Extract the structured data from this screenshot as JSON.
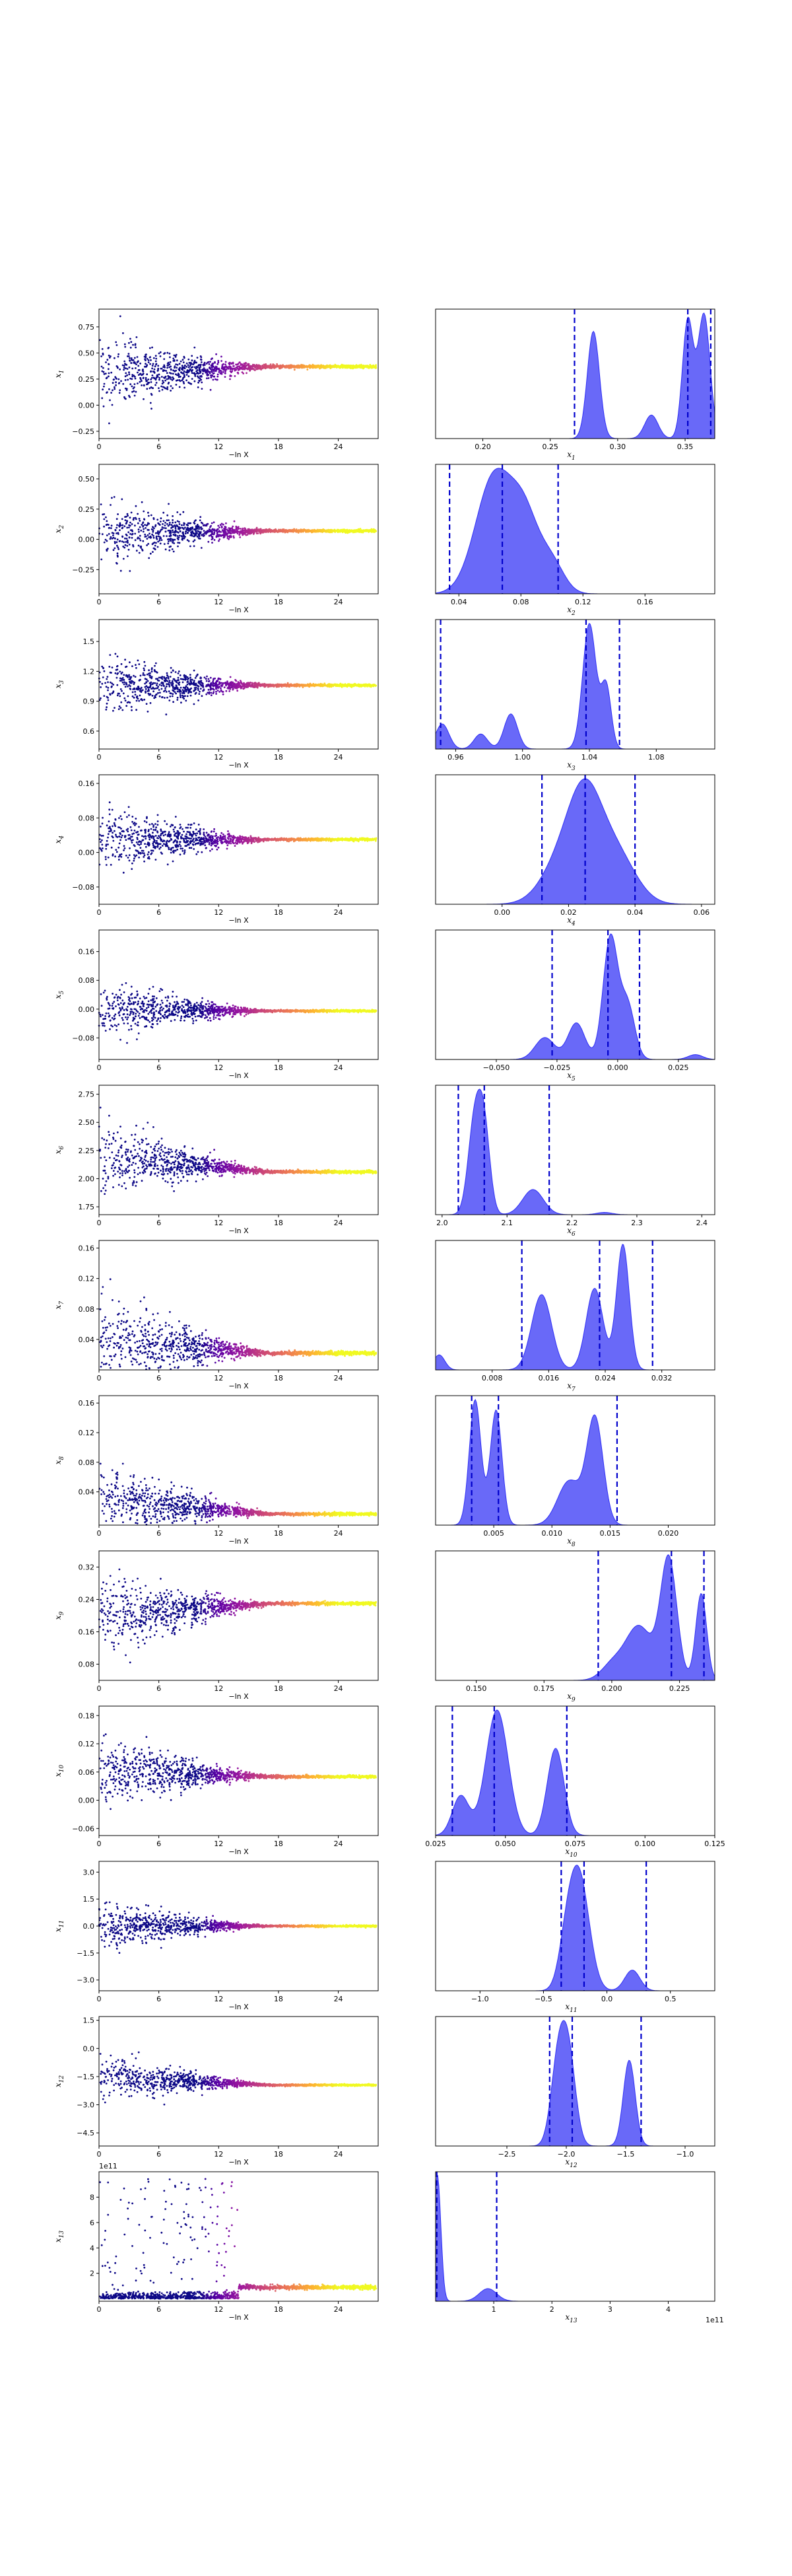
{
  "chart_data": {
    "type": "scatter",
    "description": "Nested-sampling run plot: left column = samples of each parameter vs -ln X (colored by likelihood), right column = marginal posterior density with quantile lines",
    "colormap": [
      "#0d0887",
      "#5b01a5",
      "#9c179e",
      "#cc4778",
      "#ed7953",
      "#fdb42f",
      "#f0f921"
    ],
    "density_color": "#2f2ff5",
    "quantile_line_color": "#0000cc",
    "left_x_label": "−ln X",
    "left_xticks": [
      "0",
      "6",
      "12",
      "18",
      "24"
    ],
    "left_xlim": [
      0,
      28
    ],
    "panels": [
      {
        "param": "x1",
        "ylabel_base": "x",
        "ylabel_sub": "1",
        "trace": {
          "yticks": [
            "−0.25",
            "0.00",
            "0.25",
            "0.50",
            "0.75"
          ],
          "ytick_vals": [
            -0.25,
            0,
            0.25,
            0.5,
            0.75
          ],
          "ylim": [
            -0.32,
            0.92
          ],
          "final": 0.37,
          "spread": 0.6,
          "center": 0.3,
          "offset": ""
        },
        "post": {
          "xlim": [
            0.165,
            0.372
          ],
          "xticks": [
            "0.20",
            "0.25",
            "0.30",
            "0.35"
          ],
          "xtick_vals": [
            0.2,
            0.25,
            0.3,
            0.35
          ],
          "peaks": [
            [
              0.282,
              0.0045,
              0.82
            ],
            [
              0.325,
              0.005,
              0.18
            ],
            [
              0.352,
              0.004,
              0.9
            ],
            [
              0.364,
              0.0045,
              0.95
            ]
          ],
          "quantiles": [
            0.268,
            0.352,
            0.369
          ],
          "offset": ""
        }
      },
      {
        "param": "x2",
        "ylabel_base": "x",
        "ylabel_sub": "2",
        "trace": {
          "yticks": [
            "−0.25",
            "0.00",
            "0.25",
            "0.50"
          ],
          "ytick_vals": [
            -0.25,
            0,
            0.25,
            0.5
          ],
          "ylim": [
            -0.45,
            0.62
          ],
          "final": 0.07,
          "spread": 0.45,
          "center": 0.05,
          "offset": ""
        },
        "post": {
          "xlim": [
            0.025,
            0.205
          ],
          "xticks": [
            "0.04",
            "0.08",
            "0.12",
            "0.16"
          ],
          "xtick_vals": [
            0.04,
            0.08,
            0.12,
            0.16
          ],
          "peaks": [
            [
              0.063,
              0.012,
              1.0
            ],
            [
              0.083,
              0.009,
              0.55
            ],
            [
              0.1,
              0.008,
              0.25
            ]
          ],
          "quantiles": [
            0.034,
            0.068,
            0.104
          ],
          "offset": ""
        }
      },
      {
        "param": "x3",
        "ylabel_base": "x",
        "ylabel_sub": "3",
        "trace": {
          "yticks": [
            "0.6",
            "0.9",
            "1.2",
            "1.5"
          ],
          "ytick_vals": [
            0.6,
            0.9,
            1.2,
            1.5
          ],
          "ylim": [
            0.42,
            1.72
          ],
          "final": 1.06,
          "spread": 0.5,
          "center": 1.05,
          "offset": ""
        },
        "post": {
          "xlim": [
            0.948,
            1.115
          ],
          "xticks": [
            "0.96",
            "1.00",
            "1.04",
            "1.08"
          ],
          "xtick_vals": [
            0.96,
            1.0,
            1.04,
            1.08
          ],
          "peaks": [
            [
              0.952,
              0.004,
              0.2
            ],
            [
              0.975,
              0.004,
              0.12
            ],
            [
              0.993,
              0.004,
              0.28
            ],
            [
              1.04,
              0.004,
              1.0
            ],
            [
              1.05,
              0.003,
              0.5
            ]
          ],
          "quantiles": [
            0.951,
            1.038,
            1.058
          ],
          "offset": ""
        }
      },
      {
        "param": "x4",
        "ylabel_base": "x",
        "ylabel_sub": "4",
        "trace": {
          "yticks": [
            "−0.08",
            "0.00",
            "0.08",
            "0.16"
          ],
          "ytick_vals": [
            -0.08,
            0,
            0.08,
            0.16
          ],
          "ylim": [
            -0.12,
            0.18
          ],
          "final": 0.03,
          "spread": 0.12,
          "center": 0.03,
          "offset": ""
        },
        "post": {
          "xlim": [
            -0.02,
            0.064
          ],
          "xticks": [
            "0.00",
            "0.02",
            "0.04",
            "0.06"
          ],
          "xtick_vals": [
            0.0,
            0.02,
            0.04,
            0.06
          ],
          "peaks": [
            [
              0.018,
              0.006,
              0.45
            ],
            [
              0.025,
              0.005,
              0.95
            ],
            [
              0.034,
              0.006,
              0.55
            ]
          ],
          "quantiles": [
            0.012,
            0.025,
            0.04
          ],
          "offset": ""
        }
      },
      {
        "param": "x5",
        "ylabel_base": "x",
        "ylabel_sub": "5",
        "trace": {
          "yticks": [
            "−0.08",
            "0.00",
            "0.08",
            "0.16"
          ],
          "ytick_vals": [
            -0.08,
            0,
            0.08,
            0.16
          ],
          "ylim": [
            -0.14,
            0.22
          ],
          "final": -0.005,
          "spread": 0.12,
          "center": 0.0,
          "offset": ""
        },
        "post": {
          "xlim": [
            -0.075,
            0.04
          ],
          "xticks": [
            "−0.050",
            "−0.025",
            "0.000",
            "0.025"
          ],
          "xtick_vals": [
            -0.05,
            -0.025,
            0.0,
            0.025
          ],
          "peaks": [
            [
              -0.03,
              0.004,
              0.18
            ],
            [
              -0.017,
              0.0035,
              0.3
            ],
            [
              -0.003,
              0.003,
              1.0
            ],
            [
              0.004,
              0.003,
              0.45
            ],
            [
              0.032,
              0.003,
              0.04
            ]
          ],
          "quantiles": [
            -0.027,
            -0.004,
            0.009
          ],
          "offset": ""
        }
      },
      {
        "param": "x6",
        "ylabel_base": "x",
        "ylabel_sub": "6",
        "trace": {
          "yticks": [
            "1.75",
            "2.00",
            "2.25",
            "2.50",
            "2.75"
          ],
          "ytick_vals": [
            1.75,
            2.0,
            2.25,
            2.5,
            2.75
          ],
          "ylim": [
            1.68,
            2.83
          ],
          "final": 2.06,
          "spread": 0.5,
          "center": 2.2,
          "offset": ""
        },
        "post": {
          "xlim": [
            1.99,
            2.42
          ],
          "xticks": [
            "2.0",
            "2.1",
            "2.2",
            "2.3",
            "2.4"
          ],
          "xtick_vals": [
            2.0,
            2.1,
            2.2,
            2.3,
            2.4
          ],
          "peaks": [
            [
              2.05,
              0.01,
              0.8
            ],
            [
              2.065,
              0.009,
              0.7
            ],
            [
              2.14,
              0.016,
              0.22
            ],
            [
              2.25,
              0.012,
              0.02
            ]
          ],
          "quantiles": [
            2.025,
            2.065,
            2.165
          ],
          "offset": ""
        }
      },
      {
        "param": "x7",
        "ylabel_base": "x",
        "ylabel_sub": "7",
        "trace": {
          "yticks": [
            "0.04",
            "0.08",
            "0.12",
            "0.16"
          ],
          "ytick_vals": [
            0.04,
            0.08,
            0.12,
            0.16
          ],
          "ylim": [
            0.0,
            0.17
          ],
          "final": 0.022,
          "spread": 0.1,
          "center": 0.04,
          "offset": ""
        },
        "post": {
          "xlim": [
            0.0,
            0.0395
          ],
          "xticks": [
            "0.008",
            "0.016",
            "0.024",
            "0.032"
          ],
          "xtick_vals": [
            0.008,
            0.016,
            0.024,
            0.032
          ],
          "peaks": [
            [
              0.0005,
              0.0008,
              0.12
            ],
            [
              0.015,
              0.0014,
              0.6
            ],
            [
              0.0225,
              0.0012,
              0.65
            ],
            [
              0.0265,
              0.0009,
              1.0
            ]
          ],
          "quantiles": [
            0.0122,
            0.0232,
            0.0307
          ],
          "offset": ""
        }
      },
      {
        "param": "x8",
        "ylabel_base": "x",
        "ylabel_sub": "8",
        "trace": {
          "yticks": [
            "0.04",
            "0.08",
            "0.12",
            "0.16"
          ],
          "ytick_vals": [
            0.04,
            0.08,
            0.12,
            0.16
          ],
          "ylim": [
            -0.005,
            0.17
          ],
          "final": 0.01,
          "spread": 0.08,
          "center": 0.03,
          "offset": ""
        },
        "post": {
          "xlim": [
            0.0,
            0.024
          ],
          "xticks": [
            "0.005",
            "0.010",
            "0.015",
            "0.020"
          ],
          "xtick_vals": [
            0.005,
            0.01,
            0.015,
            0.02
          ],
          "peaks": [
            [
              0.0034,
              0.0005,
              0.85
            ],
            [
              0.0052,
              0.0005,
              0.78
            ],
            [
              0.0115,
              0.001,
              0.3
            ],
            [
              0.0137,
              0.0007,
              0.72
            ]
          ],
          "quantiles": [
            0.0031,
            0.0054,
            0.0156
          ],
          "offset": ""
        }
      },
      {
        "param": "x9",
        "ylabel_base": "x",
        "ylabel_sub": "9",
        "trace": {
          "yticks": [
            "0.08",
            "0.16",
            "0.24",
            "0.32"
          ],
          "ytick_vals": [
            0.08,
            0.16,
            0.24,
            0.32
          ],
          "ylim": [
            0.04,
            0.36
          ],
          "final": 0.23,
          "spread": 0.16,
          "center": 0.2,
          "offset": ""
        },
        "post": {
          "xlim": [
            0.135,
            0.238
          ],
          "xticks": [
            "0.150",
            "0.175",
            "0.200",
            "0.225"
          ],
          "xtick_vals": [
            0.15,
            0.175,
            0.2,
            0.225
          ],
          "peaks": [
            [
              0.2,
              0.004,
              0.12
            ],
            [
              0.21,
              0.005,
              0.45
            ],
            [
              0.221,
              0.003,
              1.0
            ],
            [
              0.233,
              0.002,
              0.72
            ]
          ],
          "quantiles": [
            0.195,
            0.222,
            0.234
          ],
          "offset": ""
        }
      },
      {
        "param": "x10",
        "ylabel_base": "x",
        "ylabel_sub": "10",
        "trace": {
          "yticks": [
            "−0.06",
            "0.00",
            "0.06",
            "0.12",
            "0.18"
          ],
          "ytick_vals": [
            -0.06,
            0,
            0.06,
            0.12,
            0.18
          ],
          "ylim": [
            -0.075,
            0.2
          ],
          "final": 0.05,
          "spread": 0.12,
          "center": 0.06,
          "offset": ""
        },
        "post": {
          "xlim": [
            0.025,
            0.125
          ],
          "xticks": [
            "0.025",
            "0.050",
            "0.075",
            "0.100",
            "0.125"
          ],
          "xtick_vals": [
            0.025,
            0.05,
            0.075,
            0.1,
            0.125
          ],
          "peaks": [
            [
              0.034,
              0.003,
              0.3
            ],
            [
              0.047,
              0.004,
              0.95
            ],
            [
              0.068,
              0.003,
              0.66
            ]
          ],
          "quantiles": [
            0.031,
            0.046,
            0.072
          ],
          "offset": ""
        }
      },
      {
        "param": "x11",
        "ylabel_base": "x",
        "ylabel_sub": "11",
        "trace": {
          "yticks": [
            "−3.0",
            "−1.5",
            "0.0",
            "1.5",
            "3.0"
          ],
          "ytick_vals": [
            -3,
            -1.5,
            0,
            1.5,
            3
          ],
          "ylim": [
            -3.6,
            3.6
          ],
          "final": 0.0,
          "spread": 2.2,
          "center": 0.0,
          "offset": ""
        },
        "post": {
          "xlim": [
            -1.35,
            0.85
          ],
          "xticks": [
            "−1.0",
            "−0.5",
            "0.0",
            "0.5"
          ],
          "xtick_vals": [
            -1.0,
            -0.5,
            0.0,
            0.5
          ],
          "peaks": [
            [
              -0.22,
              0.08,
              1.0
            ],
            [
              -0.32,
              0.06,
              0.3
            ],
            [
              0.2,
              0.06,
              0.18
            ]
          ],
          "quantiles": [
            -0.36,
            -0.18,
            0.31
          ],
          "offset": ""
        }
      },
      {
        "param": "x12",
        "ylabel_base": "x",
        "ylabel_sub": "12",
        "trace": {
          "yticks": [
            "−4.5",
            "−3.0",
            "−1.5",
            "0.0",
            "1.5"
          ],
          "ytick_vals": [
            -4.5,
            -3,
            -1.5,
            0,
            1.5
          ],
          "ylim": [
            -5.2,
            1.7
          ],
          "final": -1.95,
          "spread": 2.0,
          "center": -1.5,
          "offset": ""
        },
        "post": {
          "xlim": [
            -3.1,
            -0.75
          ],
          "xticks": [
            "−2.5",
            "−2.0",
            "−1.5",
            "−1.0"
          ],
          "xtick_vals": [
            -2.5,
            -2.0,
            -1.5,
            -1.0
          ],
          "peaks": [
            [
              -2.07,
              0.06,
              0.75
            ],
            [
              -1.98,
              0.06,
              0.8
            ],
            [
              -1.47,
              0.05,
              0.8
            ]
          ],
          "quantiles": [
            -2.14,
            -1.95,
            -1.37
          ],
          "offset": ""
        }
      },
      {
        "param": "x13",
        "ylabel_base": "x",
        "ylabel_sub": "13",
        "trace": {
          "yticks": [
            "2",
            "4",
            "6",
            "8"
          ],
          "ytick_vals": [
            2,
            4,
            6,
            8
          ],
          "ylim": [
            -0.2,
            10
          ],
          "final": 0.9,
          "spread": 0.0,
          "center": 0.0,
          "offset": "1e11"
        },
        "post": {
          "xlim": [
            0.0,
            4.8
          ],
          "xticks": [
            "1",
            "2",
            "3",
            "4"
          ],
          "xtick_vals": [
            1,
            2,
            3,
            4
          ],
          "peaks": [
            [
              0.03,
              0.06,
              1.0
            ],
            [
              0.9,
              0.15,
              0.1
            ]
          ],
          "quantiles": [
            0.02,
            1.05
          ],
          "offset": "1e11"
        }
      }
    ]
  }
}
